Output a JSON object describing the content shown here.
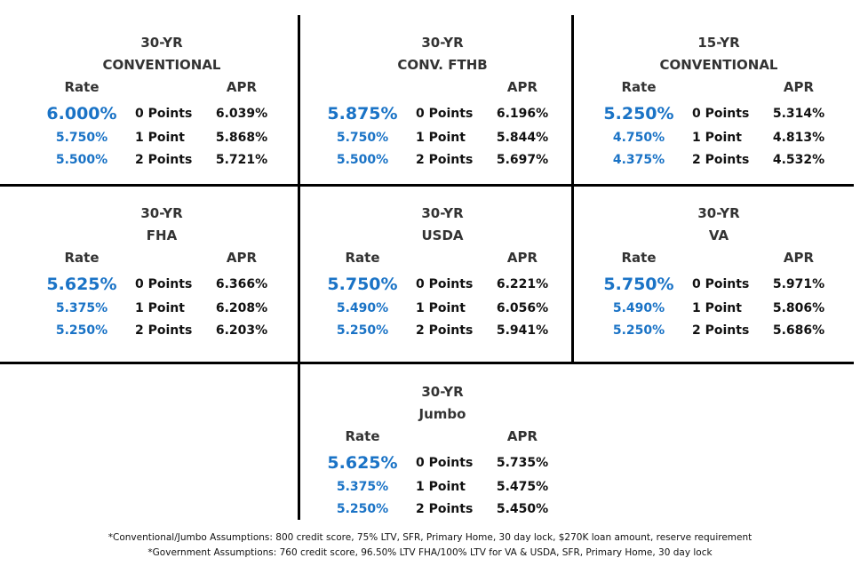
{
  "panels": [
    {
      "title1": "30-YR",
      "title2": "CONVENTIONAL",
      "rate_header": "Rate",
      "apr_header": "APR",
      "rows": [
        {
          "rate": "6.000%",
          "points": "0 Points",
          "apr": "6.039%"
        },
        {
          "rate": "5.750%",
          "points": "1 Point",
          "apr": "5.868%"
        },
        {
          "rate": "5.500%",
          "points": "2 Points",
          "apr": "5.721%"
        }
      ]
    },
    {
      "title1": "30-YR",
      "title2": "CONV. FTHB",
      "rate_header": "",
      "apr_header": "APR",
      "rows": [
        {
          "rate": "5.875%",
          "points": "0 Points",
          "apr": "6.196%"
        },
        {
          "rate": "5.750%",
          "points": "1 Point",
          "apr": "5.844%"
        },
        {
          "rate": "5.500%",
          "points": "2 Points",
          "apr": "5.697%"
        }
      ]
    },
    {
      "title1": "15-YR",
      "title2": "CONVENTIONAL",
      "rate_header": "Rate",
      "apr_header": "APR",
      "rows": [
        {
          "rate": "5.250%",
          "points": "0 Points",
          "apr": "5.314%"
        },
        {
          "rate": "4.750%",
          "points": "1 Point",
          "apr": "4.813%"
        },
        {
          "rate": "4.375%",
          "points": "2 Points",
          "apr": "4.532%"
        }
      ]
    },
    {
      "title1": "30-YR",
      "title2": "FHA",
      "rate_header": "Rate",
      "apr_header": "APR",
      "rows": [
        {
          "rate": "5.625%",
          "points": "0 Points",
          "apr": "6.366%"
        },
        {
          "rate": "5.375%",
          "points": "1 Point",
          "apr": "6.208%"
        },
        {
          "rate": "5.250%",
          "points": "2 Points",
          "apr": "6.203%"
        }
      ]
    },
    {
      "title1": "30-YR",
      "title2": "USDA",
      "rate_header": "Rate",
      "apr_header": "APR",
      "rows": [
        {
          "rate": "5.750%",
          "points": "0 Points",
          "apr": "6.221%"
        },
        {
          "rate": "5.490%",
          "points": "1 Point",
          "apr": "6.056%"
        },
        {
          "rate": "5.250%",
          "points": "2 Points",
          "apr": "5.941%"
        }
      ]
    },
    {
      "title1": "30-YR",
      "title2": "VA",
      "rate_header": "Rate",
      "apr_header": "APR",
      "rows": [
        {
          "rate": "5.750%",
          "points": "0 Points",
          "apr": "5.971%"
        },
        {
          "rate": "5.490%",
          "points": "1 Point",
          "apr": "5.806%"
        },
        {
          "rate": "5.250%",
          "points": "2 Points",
          "apr": "5.686%"
        }
      ]
    },
    {
      "title1": "30-YR",
      "title2": "Jumbo",
      "rate_header": "Rate",
      "apr_header": "APR",
      "rows": [
        {
          "rate": "5.625%",
          "points": "0 Points",
          "apr": "5.735%"
        },
        {
          "rate": "5.375%",
          "points": "1 Point",
          "apr": "5.475%"
        },
        {
          "rate": "5.250%",
          "points": "2 Points",
          "apr": "5.450%"
        }
      ]
    }
  ],
  "footnotes": [
    "*Conventional/Jumbo Assumptions: 800 credit score, 75% LTV, SFR, Primary Home, 30 day lock, $270K loan amount, reserve requirement",
    "*Government Assumptions: 760 credit score, 96.50% LTV FHA/100% LTV for VA & USDA, SFR, Primary Home, 30 day lock"
  ],
  "colors": {
    "rate_blue": "#1a73c6",
    "grid": "#000000"
  }
}
